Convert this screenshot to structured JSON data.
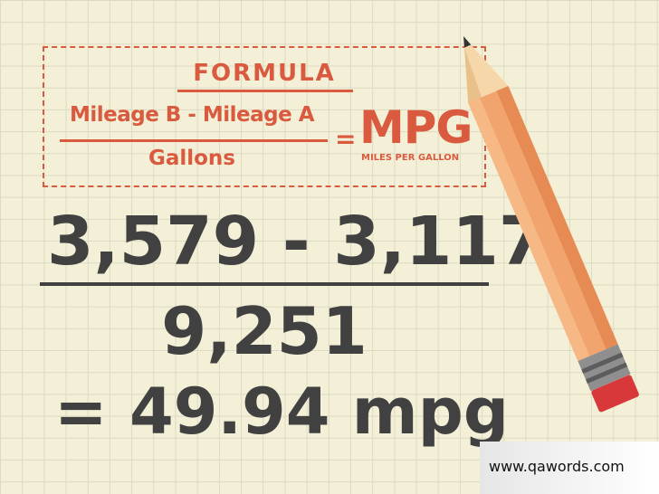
{
  "formula": {
    "title": "FORMULA",
    "numerator": "Mileage B - Mileage A",
    "denominator": "Gallons",
    "equals": "=",
    "result": "MPG",
    "result_caption": "MILES PER GALLON"
  },
  "calculation": {
    "numerator": "3,579 - 3,117",
    "denominator": "9,251",
    "result": "= 49.94 mpg"
  },
  "watermark": "www.qawords.com",
  "colors": {
    "paper": "#f4f0d8",
    "grid": "#dcdac2",
    "accent": "#d95a3e",
    "text": "#414141",
    "pencil_body": "#f2a46f"
  },
  "icons": [
    "pencil-icon"
  ]
}
